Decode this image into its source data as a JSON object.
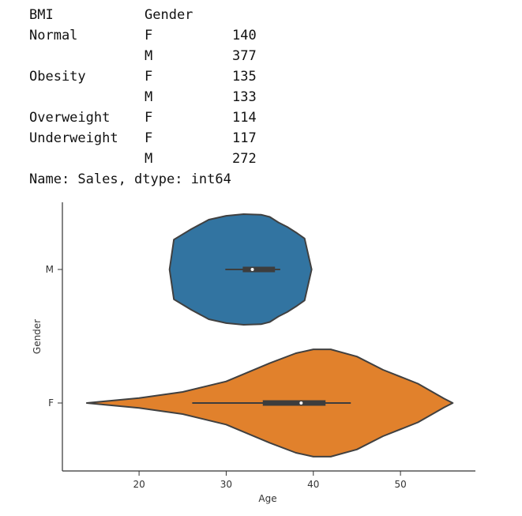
{
  "table": {
    "header": {
      "bmi": "BMI",
      "gender": "Gender",
      "value": ""
    },
    "rows": [
      {
        "bmi": "Normal",
        "gender": "F",
        "value": "140"
      },
      {
        "bmi": "",
        "gender": "M",
        "value": "377"
      },
      {
        "bmi": "Obesity",
        "gender": "F",
        "value": "135"
      },
      {
        "bmi": "",
        "gender": "M",
        "value": "133"
      },
      {
        "bmi": "Overweight",
        "gender": "F",
        "value": "114"
      },
      {
        "bmi": "Underweight",
        "gender": "F",
        "value": "117"
      },
      {
        "bmi": "",
        "gender": "M",
        "value": "272"
      }
    ],
    "footer": "Name: Sales, dtype: int64"
  },
  "chart_data": {
    "type": "violin",
    "orientation": "horizontal",
    "xlabel": "Age",
    "ylabel": "Gender",
    "xlim": [
      11.2,
      58.6
    ],
    "xticks": [
      20,
      30,
      40,
      50
    ],
    "categories": [
      "M",
      "F"
    ],
    "series": [
      {
        "category": "M",
        "color": "#3274a1",
        "whisker": [
          29.9,
          36.2
        ],
        "quartiles": [
          31.9,
          35.6
        ],
        "median": 33.0,
        "density": [
          [
            23.5,
            0.0
          ],
          [
            24.0,
            0.54
          ],
          [
            26.0,
            0.73
          ],
          [
            28.0,
            0.9
          ],
          [
            30.0,
            0.97
          ],
          [
            32.0,
            1.0
          ],
          [
            34.0,
            0.99
          ],
          [
            35.0,
            0.95
          ],
          [
            36.0,
            0.85
          ],
          [
            37.0,
            0.77
          ],
          [
            38.0,
            0.67
          ],
          [
            39.0,
            0.56
          ],
          [
            39.8,
            0.0
          ]
        ]
      },
      {
        "category": "F",
        "color": "#e1812c",
        "whisker": [
          26.1,
          44.3
        ],
        "quartiles": [
          34.2,
          41.4
        ],
        "median": 38.6,
        "density": [
          [
            14.0,
            0.0
          ],
          [
            16.0,
            0.03
          ],
          [
            20.0,
            0.09
          ],
          [
            25.0,
            0.2
          ],
          [
            30.0,
            0.39
          ],
          [
            35.0,
            0.72
          ],
          [
            38.0,
            0.9
          ],
          [
            40.0,
            0.97
          ],
          [
            42.0,
            0.97
          ],
          [
            45.0,
            0.84
          ],
          [
            48.0,
            0.6
          ],
          [
            52.0,
            0.35
          ],
          [
            55.0,
            0.08
          ],
          [
            56.0,
            0.0
          ]
        ]
      }
    ]
  }
}
